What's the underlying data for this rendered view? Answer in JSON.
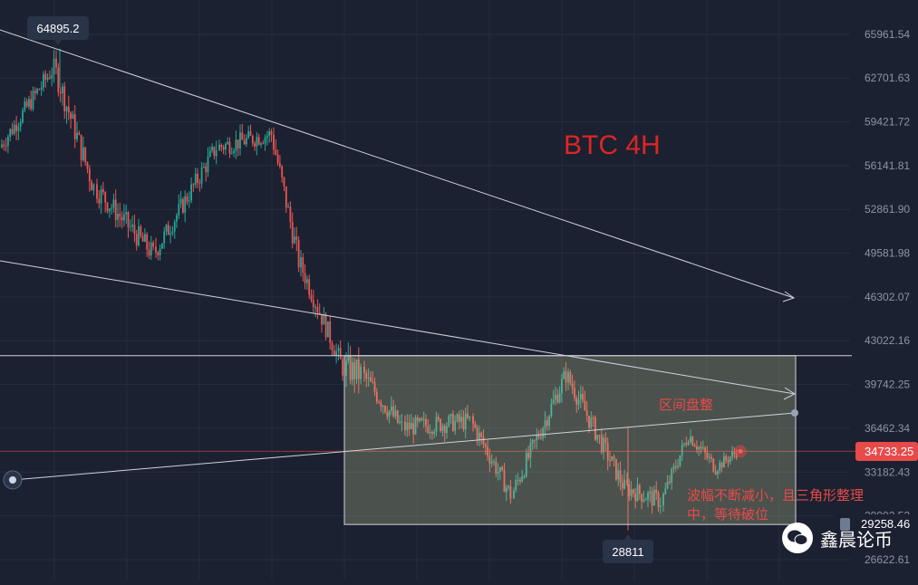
{
  "chart_data": {
    "type": "candlestick",
    "title": "BTC 4H",
    "ylim": [
      25000,
      69000
    ],
    "y_ticks": [
      "65961.54",
      "62701.63",
      "59421.72",
      "56141.81",
      "52861.90",
      "49581.98",
      "46302.07",
      "43022.16",
      "39742.25",
      "36462.34",
      "33182.43",
      "29902.52",
      "26622.61"
    ],
    "current_price": "34733.25",
    "range_low_label": "29258.46",
    "high_label": "64895.2",
    "low_label": "28811",
    "annotations": {
      "range_consolidation": "区间盘整",
      "triangle_note": "波幅不断减小，且三角形整理中，等待破位"
    },
    "colors": {
      "up": "#26a69a",
      "down": "#ef5350",
      "title": "#e02424",
      "price_tag": "#e84a4a"
    },
    "ranges": [
      {
        "start": 0,
        "end": 60,
        "startPrice": 57500,
        "endPrice": 63500,
        "vol": 1400
      },
      {
        "start": 60,
        "end": 105,
        "startPrice": 63500,
        "endPrice": 54500,
        "vol": 1900
      },
      {
        "start": 105,
        "end": 170,
        "startPrice": 54500,
        "endPrice": 49500,
        "vol": 1700
      },
      {
        "start": 170,
        "end": 240,
        "startPrice": 49500,
        "endPrice": 57500,
        "vol": 1500
      },
      {
        "start": 240,
        "end": 300,
        "startPrice": 57500,
        "endPrice": 58500,
        "vol": 1400
      },
      {
        "start": 300,
        "end": 330,
        "startPrice": 58500,
        "endPrice": 49000,
        "vol": 1800
      },
      {
        "start": 330,
        "end": 380,
        "startPrice": 49000,
        "endPrice": 41000,
        "vol": 1600
      },
      {
        "start": 380,
        "end": 400,
        "startPrice": 41000,
        "endPrice": 40500,
        "vol": 2200
      },
      {
        "start": 400,
        "end": 445,
        "startPrice": 40500,
        "endPrice": 36500,
        "vol": 1600
      },
      {
        "start": 445,
        "end": 520,
        "startPrice": 36500,
        "endPrice": 37000,
        "vol": 1400
      },
      {
        "start": 520,
        "end": 565,
        "startPrice": 37000,
        "endPrice": 31500,
        "vol": 1400
      },
      {
        "start": 565,
        "end": 625,
        "startPrice": 31500,
        "endPrice": 40500,
        "vol": 1500
      },
      {
        "start": 625,
        "end": 690,
        "startPrice": 40500,
        "endPrice": 32000,
        "vol": 1500
      },
      {
        "start": 690,
        "end": 730,
        "startPrice": 32000,
        "endPrice": 31000,
        "vol": 1400
      },
      {
        "start": 730,
        "end": 760,
        "startPrice": 31000,
        "endPrice": 36000,
        "vol": 1200
      },
      {
        "start": 760,
        "end": 790,
        "startPrice": 36000,
        "endPrice": 33500,
        "vol": 1100
      },
      {
        "start": 790,
        "end": 815,
        "startPrice": 33500,
        "endPrice": 34700,
        "vol": 900
      }
    ]
  }
}
